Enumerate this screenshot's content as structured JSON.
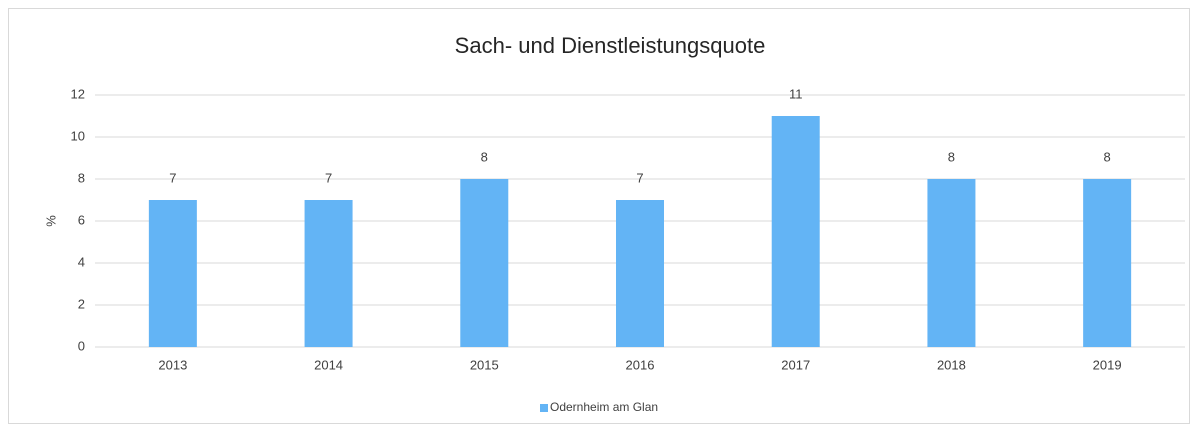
{
  "chart_data": {
    "type": "bar",
    "title": "Sach- und Dienstleistungsquote",
    "y_label": "%",
    "categories": [
      "2013",
      "2014",
      "2015",
      "2016",
      "2017",
      "2018",
      "2019"
    ],
    "series": [
      {
        "name": "Odernheim am Glan",
        "color": "#63b4f5",
        "values": [
          7,
          7,
          8,
          7,
          11,
          8,
          8
        ]
      }
    ],
    "ylim": [
      0,
      12
    ],
    "yticks": [
      0,
      2,
      4,
      6,
      8,
      10,
      12
    ],
    "grid": true,
    "legend": "bottom",
    "data_labels": true
  }
}
